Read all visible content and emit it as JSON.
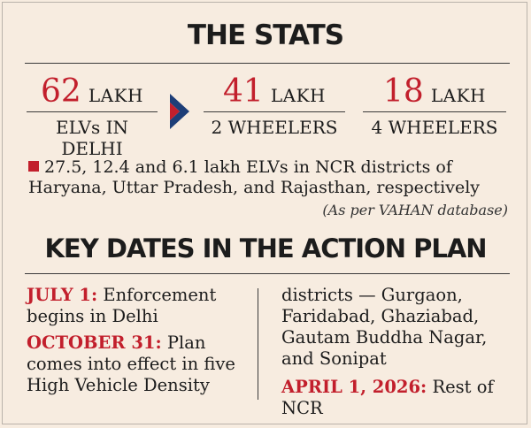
{
  "stats_title": "THE STATS",
  "stats": [
    {
      "number": "62",
      "unit": "LAKH",
      "label": "ELVs IN DELHI"
    },
    {
      "number": "41",
      "unit": "LAKH",
      "label": "2 WHEELERS"
    },
    {
      "number": "18",
      "unit": "LAKH",
      "label": "4 WHEELERS"
    }
  ],
  "note": "27.5, 12.4 and 6.1 lakh ELVs in NCR districts of Haryana, Uttar Pradesh, and Rajasthan, respectively",
  "source": "(As per VAHAN database)",
  "plan_title": "KEY DATES IN THE ACTION PLAN",
  "dates": {
    "d1_date": "JULY 1:",
    "d1_text": " Enforcement begins in Delhi",
    "d2_date": "OCTOBER 31:",
    "d2_text": " Plan comes into effect in five High Vehicle Density",
    "d2_continued": "districts — Gurgaon, Faridabad, Ghaziabad, Gautam Buddha Nagar, and Sonipat",
    "d3_date": "APRIL 1, 2026:",
    "d3_text": " Rest of NCR"
  },
  "colors": {
    "accent": "#c21f2c",
    "arrow": "#1d3e78",
    "background": "#f7ece0"
  },
  "icons": {
    "arrow": "chevron-right-icon",
    "bullet": "square-bullet-icon"
  }
}
